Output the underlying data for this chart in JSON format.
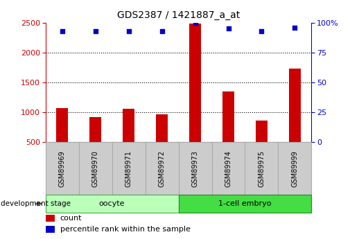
{
  "title": "GDS2387 / 1421887_a_at",
  "samples": [
    "GSM89969",
    "GSM89970",
    "GSM89971",
    "GSM89972",
    "GSM89973",
    "GSM89974",
    "GSM89975",
    "GSM89999"
  ],
  "counts": [
    1075,
    920,
    1060,
    970,
    2480,
    1350,
    865,
    1730
  ],
  "percentile_ranks": [
    93,
    93,
    93,
    93,
    100,
    95,
    93,
    96
  ],
  "groups": [
    {
      "label": "oocyte",
      "indices": [
        0,
        1,
        2,
        3
      ],
      "color": "#bbffbb",
      "edge_color": "#44aa44"
    },
    {
      "label": "1-cell embryo",
      "indices": [
        4,
        5,
        6,
        7
      ],
      "color": "#44dd44",
      "edge_color": "#228822"
    }
  ],
  "bar_color": "#cc0000",
  "dot_color": "#0000cc",
  "left_axis_color": "#cc0000",
  "right_axis_color": "#0000cc",
  "ylim_left": [
    500,
    2500
  ],
  "ylim_right": [
    0,
    100
  ],
  "yticks_left": [
    500,
    1000,
    1500,
    2000,
    2500
  ],
  "yticks_right": [
    0,
    25,
    50,
    75,
    100
  ],
  "ytick_right_labels": [
    "0",
    "25",
    "50",
    "75",
    "100%"
  ],
  "background_color": "#ffffff",
  "grid_color": "#000000",
  "grid_lines": [
    1000,
    1500,
    2000
  ],
  "bar_width": 0.35,
  "dot_size": 20,
  "legend_count_color": "#cc0000",
  "legend_pct_color": "#0000cc",
  "dev_stage_label": "development stage",
  "sample_box_color": "#cccccc",
  "sample_box_edge": "#aaaaaa"
}
